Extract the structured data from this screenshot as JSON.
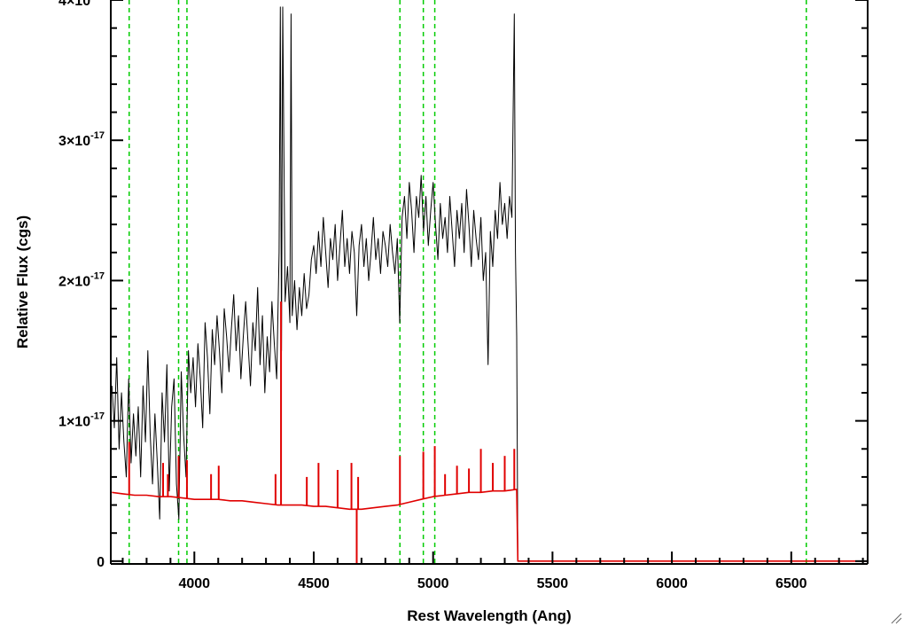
{
  "chart_data": {
    "type": "line",
    "xlabel": "Rest Wavelength (Ang)",
    "ylabel": "Relative Flux (cgs)",
    "xlim": [
      3650,
      6820
    ],
    "ylim": [
      -0.02,
      4.0
    ],
    "y_unit_multiplier": "×10^-17",
    "x_ticks": [
      4000,
      4500,
      5000,
      5500,
      6000,
      6500
    ],
    "x_tick_labels": [
      "4000",
      "4500",
      "5000",
      "5500",
      "6000",
      "6500"
    ],
    "y_ticks": [
      0,
      1,
      2,
      3,
      4
    ],
    "y_tick_labels": [
      {
        "mantissa": "0",
        "exponent": ""
      },
      {
        "mantissa": "1×10",
        "exponent": "-17"
      },
      {
        "mantissa": "2×10",
        "exponent": "-17"
      },
      {
        "mantissa": "3×10",
        "exponent": "-17"
      },
      {
        "mantissa": "4×10",
        "exponent": "-17"
      }
    ],
    "reference_lines_x": [
      3727,
      3934,
      3969,
      4861,
      4959,
      5007,
      6563
    ],
    "reference_line_color": "#00cc00",
    "grid": false,
    "series": [
      {
        "color": "#000000",
        "x": [
          3655,
          3665,
          3675,
          3685,
          3695,
          3705,
          3715,
          3725,
          3735,
          3745,
          3755,
          3765,
          3775,
          3785,
          3795,
          3805,
          3815,
          3825,
          3835,
          3845,
          3855,
          3865,
          3875,
          3885,
          3895,
          3905,
          3915,
          3925,
          3935,
          3945,
          3955,
          3965,
          3975,
          3985,
          3995,
          4005,
          4015,
          4025,
          4035,
          4045,
          4055,
          4065,
          4075,
          4085,
          4095,
          4105,
          4115,
          4125,
          4135,
          4145,
          4155,
          4165,
          4175,
          4185,
          4195,
          4205,
          4215,
          4225,
          4235,
          4245,
          4255,
          4265,
          4275,
          4285,
          4295,
          4305,
          4315,
          4325,
          4335,
          4345,
          4355,
          4360,
          4365,
          4370,
          4380,
          4390,
          4400,
          4405,
          4410,
          4420,
          4430,
          4440,
          4450,
          4460,
          4470,
          4480,
          4490,
          4500,
          4510,
          4520,
          4530,
          4540,
          4550,
          4560,
          4570,
          4580,
          4590,
          4600,
          4610,
          4620,
          4630,
          4640,
          4650,
          4660,
          4670,
          4680,
          4690,
          4700,
          4710,
          4720,
          4730,
          4740,
          4750,
          4760,
          4770,
          4780,
          4790,
          4800,
          4810,
          4820,
          4830,
          4840,
          4850,
          4860,
          4870,
          4880,
          4890,
          4900,
          4910,
          4920,
          4930,
          4940,
          4950,
          4960,
          4970,
          4980,
          4990,
          5000,
          5010,
          5020,
          5030,
          5040,
          5050,
          5060,
          5070,
          5080,
          5090,
          5100,
          5110,
          5120,
          5130,
          5140,
          5150,
          5160,
          5170,
          5180,
          5190,
          5200,
          5210,
          5220,
          5230,
          5240,
          5250,
          5260,
          5270,
          5280,
          5290,
          5300,
          5310,
          5320,
          5330,
          5340,
          5345,
          5350
        ],
        "y": [
          1.25,
          0.95,
          1.45,
          0.8,
          1.2,
          0.85,
          0.6,
          1.3,
          0.7,
          1.05,
          0.75,
          1.1,
          0.6,
          1.25,
          0.85,
          1.5,
          0.9,
          0.55,
          1.05,
          0.7,
          0.3,
          1.2,
          0.85,
          1.4,
          0.5,
          1.1,
          1.3,
          0.55,
          0.3,
          1.35,
          0.9,
          0.6,
          1.5,
          1.2,
          1.45,
          1.1,
          1.55,
          1.3,
          0.95,
          1.7,
          1.45,
          1.05,
          1.65,
          1.4,
          1.75,
          1.5,
          1.2,
          1.8,
          1.6,
          1.35,
          1.65,
          1.9,
          1.5,
          1.75,
          1.3,
          1.6,
          1.85,
          1.55,
          1.25,
          1.7,
          1.5,
          1.95,
          1.4,
          1.75,
          1.2,
          1.6,
          1.35,
          1.85,
          1.55,
          1.3,
          2.2,
          3.95,
          1.5,
          3.95,
          1.85,
          2.1,
          1.7,
          3.9,
          1.75,
          2.0,
          1.65,
          1.95,
          1.75,
          2.05,
          1.8,
          1.9,
          2.15,
          2.25,
          2.05,
          2.35,
          2.1,
          2.45,
          2.2,
          1.95,
          2.3,
          2.15,
          2.4,
          2.0,
          2.25,
          2.5,
          2.1,
          2.3,
          2.05,
          2.35,
          2.2,
          1.75,
          2.25,
          2.4,
          2.1,
          2.3,
          2.0,
          2.2,
          2.45,
          2.15,
          2.3,
          2.05,
          2.35,
          2.25,
          2.1,
          2.4,
          2.2,
          2.05,
          2.3,
          1.7,
          2.45,
          2.6,
          2.3,
          2.7,
          2.5,
          2.2,
          2.6,
          2.45,
          2.75,
          2.35,
          2.6,
          2.25,
          2.5,
          2.7,
          2.4,
          2.15,
          2.55,
          2.3,
          2.45,
          2.2,
          2.6,
          2.35,
          2.1,
          2.5,
          2.3,
          2.55,
          2.2,
          2.65,
          2.4,
          2.1,
          2.5,
          2.3,
          2.15,
          2.45,
          2.0,
          2.2,
          1.4,
          2.35,
          2.1,
          2.5,
          2.3,
          2.7,
          2.4,
          2.55,
          2.3,
          2.6,
          2.45,
          3.9,
          2.2,
          1.6
        ],
        "x_tail": [
          5350,
          5355,
          6820
        ],
        "y_tail": [
          1.6,
          0.0,
          0.0
        ]
      },
      {
        "color": "#e00000",
        "x": [
          3655,
          3700,
          3750,
          3800,
          3850,
          3900,
          3950,
          4000,
          4050,
          4100,
          4150,
          4200,
          4250,
          4300,
          4350,
          4400,
          4450,
          4500,
          4550,
          4600,
          4650,
          4700,
          4750,
          4800,
          4850,
          4900,
          4950,
          5000,
          5050,
          5100,
          5150,
          5200,
          5250,
          5300,
          5345,
          5350,
          5355,
          6820
        ],
        "y": [
          0.49,
          0.48,
          0.47,
          0.47,
          0.46,
          0.46,
          0.45,
          0.44,
          0.44,
          0.44,
          0.43,
          0.43,
          0.42,
          0.41,
          0.4,
          0.4,
          0.4,
          0.39,
          0.39,
          0.38,
          0.37,
          0.37,
          0.38,
          0.39,
          0.4,
          0.42,
          0.44,
          0.46,
          0.47,
          0.48,
          0.49,
          0.49,
          0.5,
          0.5,
          0.51,
          0.51,
          0.0,
          0.0
        ],
        "spikes": [
          {
            "x": 3727,
            "y": 0.85
          },
          {
            "x": 3869,
            "y": 0.7
          },
          {
            "x": 3889,
            "y": 0.62
          },
          {
            "x": 3934,
            "y": 0.75
          },
          {
            "x": 3969,
            "y": 0.72
          },
          {
            "x": 4070,
            "y": 0.62
          },
          {
            "x": 4102,
            "y": 0.68
          },
          {
            "x": 4340,
            "y": 0.62
          },
          {
            "x": 4363,
            "y": 1.85
          },
          {
            "x": 4471,
            "y": 0.6
          },
          {
            "x": 4520,
            "y": 0.7
          },
          {
            "x": 4600,
            "y": 0.65
          },
          {
            "x": 4658,
            "y": 0.7
          },
          {
            "x": 4686,
            "y": 0.6
          },
          {
            "x": 4861,
            "y": 0.75
          },
          {
            "x": 4959,
            "y": 0.78
          },
          {
            "x": 5007,
            "y": 0.82
          },
          {
            "x": 5050,
            "y": 0.62
          },
          {
            "x": 5100,
            "y": 0.68
          },
          {
            "x": 5150,
            "y": 0.66
          },
          {
            "x": 5200,
            "y": 0.8
          },
          {
            "x": 5250,
            "y": 0.7
          },
          {
            "x": 5300,
            "y": 0.75
          },
          {
            "x": 5340,
            "y": 0.8
          }
        ],
        "dips": [
          {
            "x": 4680,
            "y": -0.02
          }
        ]
      }
    ]
  },
  "icons": {
    "resize": "resize-grip-icon"
  }
}
